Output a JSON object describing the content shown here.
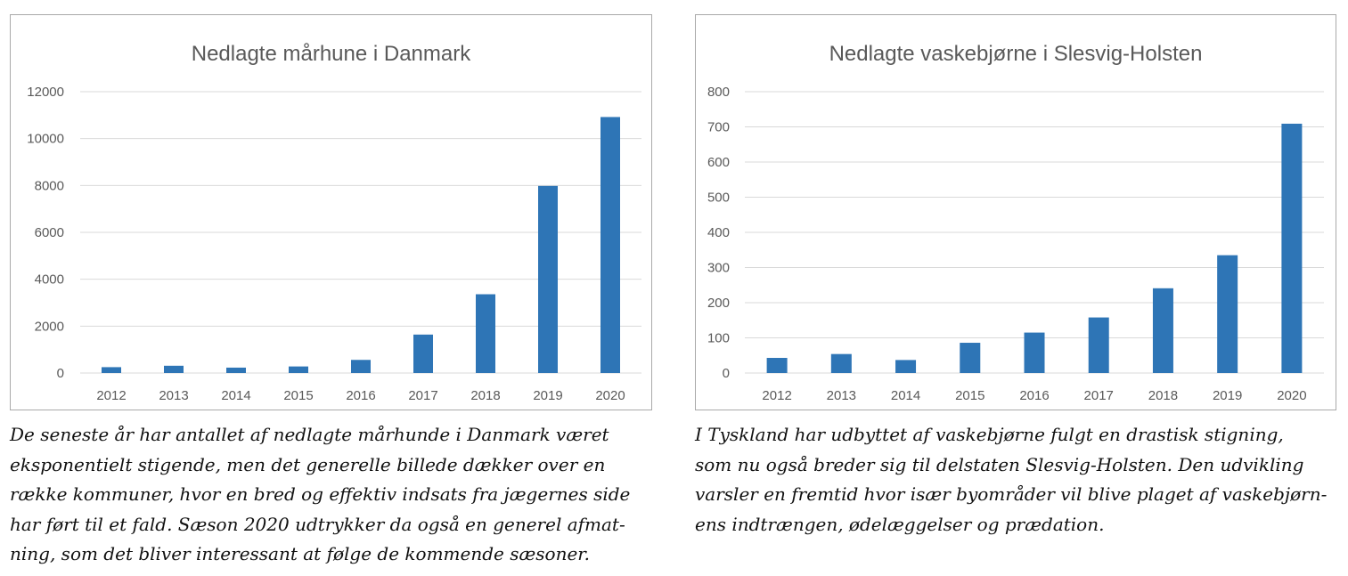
{
  "charts": [
    {
      "id": "left",
      "chart_data": {
        "type": "bar",
        "title": "Nedlagte mårhune i Danmark",
        "categories": [
          "2012",
          "2013",
          "2014",
          "2015",
          "2016",
          "2017",
          "2018",
          "2019",
          "2020"
        ],
        "values": [
          250,
          310,
          230,
          280,
          560,
          1640,
          3360,
          7980,
          10920
        ],
        "ylim": [
          0,
          12000
        ],
        "yticks": [
          0,
          2000,
          4000,
          6000,
          8000,
          10000,
          12000
        ],
        "ytick_labels": [
          "0",
          "2000",
          "4000",
          "6000",
          "8000",
          "10000",
          "12000"
        ],
        "xlabel": "",
        "ylabel": "",
        "grid": true,
        "legend": "none",
        "bar_color": "#2e75b6"
      },
      "caption": [
        "De seneste år har antallet af nedlagte mårhunde i Danmark været",
        "eksponentielt stigende, men det generelle billede dækker over en",
        "række kommuner, hvor en bred og effektiv indsats fra jægernes side",
        "har ført til et fald. Sæson 2020 udtrykker da også en generel afmat-",
        "ning, som det bliver interessant at følge de kommende sæsoner."
      ]
    },
    {
      "id": "right",
      "chart_data": {
        "type": "bar",
        "title": "Nedlagte vaskebjørne i Slesvig-Holsten",
        "categories": [
          "2012",
          "2013",
          "2014",
          "2015",
          "2016",
          "2017",
          "2018",
          "2019",
          "2020"
        ],
        "values": [
          43,
          54,
          37,
          86,
          115,
          158,
          241,
          335,
          709
        ],
        "ylim": [
          0,
          800
        ],
        "yticks": [
          0,
          100,
          200,
          300,
          400,
          500,
          600,
          700,
          800
        ],
        "ytick_labels": [
          "0",
          "100",
          "200",
          "300",
          "400",
          "500",
          "600",
          "700",
          "800"
        ],
        "xlabel": "",
        "ylabel": "",
        "grid": true,
        "legend": "none",
        "bar_color": "#2e75b6"
      },
      "caption": [
        "I Tyskland har udbyttet af vaskebjørne fulgt en drastisk stigning,",
        "som nu også breder sig til delstaten Slesvig-Holsten. Den udvikling",
        "varsler en fremtid hvor især byområder vil blive plaget af vaskebjørn-",
        "ens indtrængen, ødelæggelser og prædation."
      ]
    }
  ]
}
